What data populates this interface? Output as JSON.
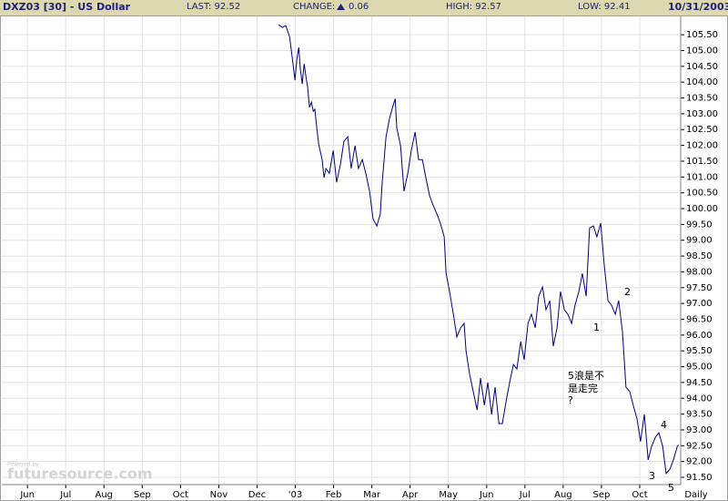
{
  "header": {
    "symbol": "DXZ03 [30] - US Dollar",
    "last": "LAST: 92.52",
    "change_label": "CHANGE:",
    "change": "0.06",
    "high": "HIGH: 92.57",
    "low": "LOW: 92.41",
    "date": "10/31/2003"
  },
  "watermark": {
    "powered": "Powered by",
    "brand": "futuresource.com"
  },
  "chart_data": {
    "type": "line",
    "period_label": "Daily",
    "xlim": [
      -0.67,
      17.07
    ],
    "xticks": [
      {
        "value": 0,
        "label": "Jun"
      },
      {
        "value": 1,
        "label": "Jul"
      },
      {
        "value": 2,
        "label": "Aug"
      },
      {
        "value": 3,
        "label": "Sep"
      },
      {
        "value": 4,
        "label": "Oct"
      },
      {
        "value": 5,
        "label": "Nov"
      },
      {
        "value": 6,
        "label": "Dec"
      },
      {
        "value": 7,
        "label": "'03"
      },
      {
        "value": 8,
        "label": "Feb"
      },
      {
        "value": 9,
        "label": "Mar"
      },
      {
        "value": 10,
        "label": "Apr"
      },
      {
        "value": 11,
        "label": "May"
      },
      {
        "value": 12,
        "label": "Jun"
      },
      {
        "value": 13,
        "label": "Jul"
      },
      {
        "value": 14,
        "label": "Aug"
      },
      {
        "value": 15,
        "label": "Sep"
      },
      {
        "value": 16,
        "label": "Oct"
      }
    ],
    "ylim": [
      91.27,
      106.08
    ],
    "yticks": [
      {
        "value": 91.5,
        "label": "91.50"
      },
      {
        "value": 92,
        "label": "92.00"
      },
      {
        "value": 92.5,
        "label": "92.50"
      },
      {
        "value": 93,
        "label": "93.00"
      },
      {
        "value": 93.5,
        "label": "93.50"
      },
      {
        "value": 94,
        "label": "94.00"
      },
      {
        "value": 94.5,
        "label": "94.50"
      },
      {
        "value": 95,
        "label": "95.00"
      },
      {
        "value": 95.5,
        "label": "95.50"
      },
      {
        "value": 96,
        "label": "96.00"
      },
      {
        "value": 96.5,
        "label": "96.50"
      },
      {
        "value": 97,
        "label": "97.00"
      },
      {
        "value": 97.5,
        "label": "97.50"
      },
      {
        "value": 98,
        "label": "98.00"
      },
      {
        "value": 98.5,
        "label": "98.50"
      },
      {
        "value": 99,
        "label": "99.00"
      },
      {
        "value": 99.5,
        "label": "99.50"
      },
      {
        "value": 100,
        "label": "100.00"
      },
      {
        "value": 100.5,
        "label": "100.50"
      },
      {
        "value": 101,
        "label": "101.00"
      },
      {
        "value": 101.5,
        "label": "101.50"
      },
      {
        "value": 102,
        "label": "102.00"
      },
      {
        "value": 102.5,
        "label": "102.50"
      },
      {
        "value": 103,
        "label": "103.00"
      },
      {
        "value": 103.5,
        "label": "103.50"
      },
      {
        "value": 104,
        "label": "104.00"
      },
      {
        "value": 104.5,
        "label": "104.50"
      },
      {
        "value": 105,
        "label": "105.00"
      },
      {
        "value": 105.5,
        "label": "105.50"
      }
    ],
    "grid": true,
    "series": [
      {
        "name": "DXZ03",
        "color": "#000080",
        "x": [
          6.56,
          6.66,
          6.75,
          6.85,
          6.94,
          6.99,
          7.04,
          7.09,
          7.13,
          7.18,
          7.23,
          7.28,
          7.32,
          7.37,
          7.42,
          7.47,
          7.51,
          7.56,
          7.61,
          7.7,
          7.75,
          7.8,
          7.89,
          7.99,
          8.08,
          8.18,
          8.27,
          8.37,
          8.46,
          8.56,
          8.65,
          8.75,
          8.84,
          8.94,
          9.03,
          9.13,
          9.22,
          9.27,
          9.37,
          9.46,
          9.56,
          9.61,
          9.65,
          9.75,
          9.84,
          9.94,
          10.03,
          10.13,
          10.22,
          10.32,
          10.41,
          10.51,
          10.6,
          10.7,
          10.79,
          10.89,
          10.94,
          11.03,
          11.13,
          11.22,
          11.32,
          11.41,
          11.46,
          11.55,
          11.65,
          11.75,
          11.84,
          11.94,
          12.03,
          12.13,
          12.22,
          12.32,
          12.41,
          12.51,
          12.6,
          12.7,
          12.79,
          12.89,
          12.98,
          13.08,
          13.17,
          13.27,
          13.36,
          13.46,
          13.55,
          13.65,
          13.74,
          13.84,
          13.93,
          14.03,
          14.12,
          14.22,
          14.31,
          14.41,
          14.5,
          14.6,
          14.69,
          14.79,
          14.88,
          14.98,
          15.07,
          15.17,
          15.26,
          15.36,
          15.45,
          15.55,
          15.64,
          15.74,
          15.83,
          15.93,
          16.02,
          16.12,
          16.22,
          16.31,
          16.41,
          16.5,
          16.6,
          16.69,
          16.79,
          16.88,
          16.98,
          17.02
        ],
        "values": [
          105.82,
          105.73,
          105.79,
          105.44,
          104.58,
          104.06,
          104.72,
          105.1,
          104.43,
          103.94,
          104.58,
          104.15,
          103.86,
          103.2,
          103.37,
          103.08,
          103.14,
          102.56,
          102.04,
          101.55,
          100.98,
          101.27,
          101.12,
          101.84,
          100.83,
          101.41,
          102.13,
          102.27,
          101.27,
          101.99,
          101.27,
          101.55,
          101.12,
          100.55,
          99.68,
          99.45,
          99.83,
          100.83,
          102.27,
          102.85,
          103.28,
          103.48,
          102.56,
          101.99,
          100.55,
          101.12,
          101.84,
          102.42,
          101.55,
          101.55,
          100.98,
          100.4,
          100.11,
          99.83,
          99.54,
          99.11,
          97.95,
          97.38,
          96.66,
          95.94,
          96.23,
          96.37,
          95.51,
          94.79,
          94.21,
          93.63,
          94.64,
          93.78,
          94.5,
          93.49,
          94.35,
          93.2,
          93.2,
          93.92,
          94.5,
          95.07,
          94.93,
          95.79,
          95.22,
          96.37,
          96.66,
          96.23,
          97.23,
          97.52,
          96.8,
          97.09,
          95.65,
          96.23,
          97.38,
          96.8,
          96.66,
          96.37,
          96.95,
          97.38,
          97.95,
          97.23,
          99.39,
          99.45,
          99.11,
          99.54,
          98.24,
          97.09,
          96.95,
          96.66,
          97.09,
          96.08,
          94.35,
          94.21,
          93.78,
          93.35,
          92.63,
          93.49,
          92.05,
          92.48,
          92.77,
          92.91,
          92.48,
          91.62,
          91.76,
          92.05,
          92.48,
          92.52
        ]
      }
    ],
    "annotations": [
      "1",
      "2",
      "3",
      "4",
      "5",
      "5浪是不",
      "是走完",
      "?"
    ]
  }
}
